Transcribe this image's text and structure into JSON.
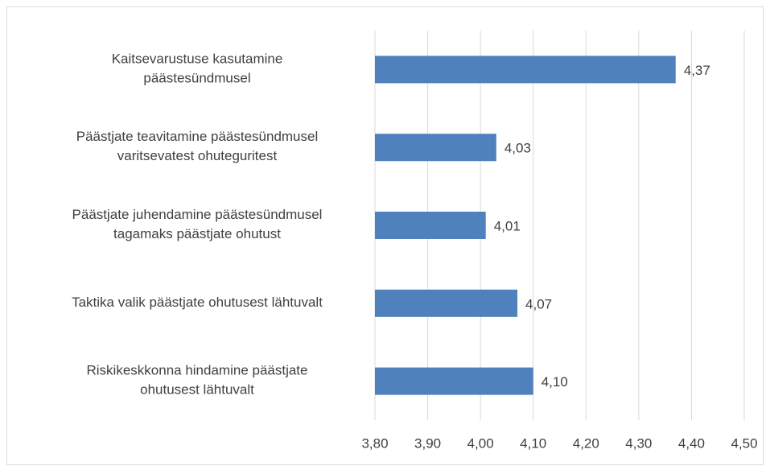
{
  "chart_data": {
    "type": "bar",
    "orientation": "horizontal",
    "categories": [
      [
        "Kaitsevarustuse kasutamine",
        "päästesündmusel"
      ],
      [
        "Päästjate teavitamine päästesündmusel",
        "varitsevatest ohuteguritest"
      ],
      [
        "Päästjate juhendamine päästesündmusel",
        "tagamaks päästjate ohutust"
      ],
      [
        "Taktika valik päästjate ohutusest lähtuvalt"
      ],
      [
        "Riskikeskkonna hindamine päästjate",
        "ohutusest lähtuvalt"
      ]
    ],
    "values": [
      4.37,
      4.03,
      4.01,
      4.07,
      4.1
    ],
    "value_labels": [
      "4,37",
      "4,03",
      "4,01",
      "4,07",
      "4,10"
    ],
    "color": "#4f81bd",
    "xlim": [
      3.8,
      4.5
    ],
    "xticks": [
      {
        "value": 3.8,
        "label": "3,80"
      },
      {
        "value": 3.9,
        "label": "3,90"
      },
      {
        "value": 4.0,
        "label": "4,00"
      },
      {
        "value": 4.1,
        "label": "4,10"
      },
      {
        "value": 4.2,
        "label": "4,20"
      },
      {
        "value": 4.3,
        "label": "4,30"
      },
      {
        "value": 4.4,
        "label": "4,40"
      },
      {
        "value": 4.5,
        "label": "4,50"
      }
    ],
    "grid": true
  }
}
